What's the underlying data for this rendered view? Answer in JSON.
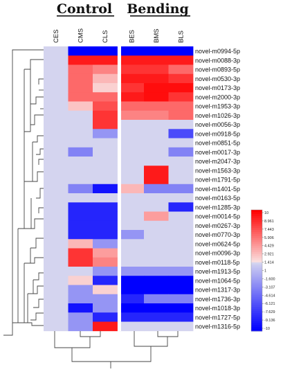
{
  "chart_data": {
    "type": "heatmap",
    "groups": [
      {
        "label": "Control",
        "columns": [
          "CES",
          "CMS",
          "CLS"
        ]
      },
      {
        "label": "Bending",
        "columns": [
          "BES",
          "BMS",
          "BLS"
        ]
      }
    ],
    "columns": [
      "CES",
      "CMS",
      "CLS",
      "BES",
      "BMS",
      "BLS"
    ],
    "rows": [
      "novel-m0994-5p",
      "novel-m0088-3p",
      "novel-m0893-5p",
      "novel-m0530-3p",
      "novel-m0173-3p",
      "novel-m2000-3p",
      "novel-m1953-3p",
      "novel-m1026-3p",
      "novel-m0056-3p",
      "novel-m0918-5p",
      "novel-m0851-5p",
      "novel-m0017-3p",
      "novel-m2047-3p",
      "novel-m1563-3p",
      "novel-m1791-5p",
      "novel-m1401-5p",
      "novel-m0163-5p",
      "novel-m1285-3p",
      "novel-m0014-5p",
      "novel-m0267-3p",
      "novel-m0770-3p",
      "novel-m0624-5p",
      "novel-m0096-3p",
      "novel-m0118-5p",
      "novel-m1913-5p",
      "novel-m1064-5p",
      "novel-m1317-3p",
      "novel-m1736-3p",
      "novel-m1018-3p",
      "novel-m1727-5p",
      "novel-m1316-5p"
    ],
    "values": [
      [
        1,
        -10,
        -10,
        -10,
        -10,
        -10
      ],
      [
        1,
        9,
        9,
        9,
        9,
        9
      ],
      [
        1,
        6,
        5,
        8,
        8,
        6
      ],
      [
        1,
        6,
        3,
        9,
        9,
        8
      ],
      [
        1,
        6,
        2,
        8,
        9.5,
        9.5
      ],
      [
        1,
        6,
        6,
        9,
        9.5,
        8
      ],
      [
        1,
        2.5,
        7,
        6,
        6,
        6
      ],
      [
        1,
        1,
        8,
        5,
        5,
        6
      ],
      [
        1,
        1,
        8,
        1,
        1,
        1
      ],
      [
        1,
        1,
        -2,
        1,
        1,
        -6
      ],
      [
        1,
        1,
        1,
        1,
        1,
        1
      ],
      [
        1,
        -3,
        1,
        1,
        1,
        -3
      ],
      [
        1,
        1,
        1,
        1,
        1,
        1
      ],
      [
        1,
        1,
        1,
        1,
        9,
        1
      ],
      [
        1,
        1,
        1,
        1,
        9,
        1
      ],
      [
        1,
        -3,
        -9,
        3,
        -3,
        -3
      ],
      [
        1,
        1,
        1,
        1,
        1,
        1
      ],
      [
        1,
        -8,
        -8,
        1,
        1,
        -8
      ],
      [
        1,
        -8,
        -8,
        1,
        4,
        1
      ],
      [
        1,
        -8,
        -8,
        1,
        1,
        1
      ],
      [
        1,
        -8,
        -8,
        -2,
        1,
        1
      ],
      [
        1,
        3,
        -2,
        1,
        1,
        1
      ],
      [
        1,
        8,
        4,
        1,
        1,
        1
      ],
      [
        1,
        8,
        5,
        1,
        1,
        1
      ],
      [
        1,
        1,
        -2,
        -2,
        -2,
        -2
      ],
      [
        1,
        2,
        -8,
        -10,
        -10,
        -10
      ],
      [
        1,
        -2,
        2,
        -10,
        -10,
        -10
      ],
      [
        1,
        -2,
        -2,
        -8,
        -3,
        -3
      ],
      [
        1,
        -9,
        -2,
        -10,
        -10,
        -10
      ],
      [
        1,
        -2,
        -8,
        -8,
        -8,
        -8
      ],
      [
        1,
        -2,
        9,
        1,
        1,
        1
      ]
    ],
    "color_scale": {
      "ticks": [
        "10",
        "8.961",
        "7.443",
        "5.906",
        "4.429",
        "2.921",
        "1.414",
        "1",
        "-1.600",
        "-3.107",
        "-4.614",
        "-6.121",
        "-7.629",
        "-9.136",
        "-10"
      ],
      "colors": {
        "high": "#ff0000",
        "mid": "#e8e8f8",
        "neutral": "#d4d4ef",
        "low": "#0000ff"
      }
    }
  }
}
